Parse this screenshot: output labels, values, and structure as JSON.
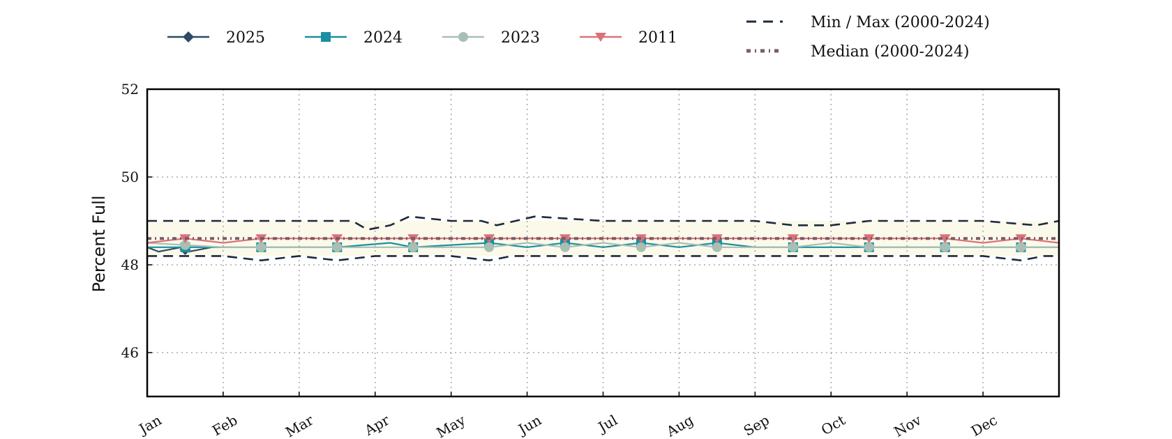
{
  "chart_data": {
    "type": "line",
    "ylabel": "Percent Full",
    "ylim": [
      45,
      52
    ],
    "yticks": [
      46,
      48,
      50,
      52
    ],
    "x_categories": [
      "Jan",
      "Feb",
      "Mar",
      "Apr",
      "May",
      "Jun",
      "Jul",
      "Aug",
      "Sep",
      "Oct",
      "Nov",
      "Dec"
    ],
    "grid": true,
    "legend_position": "top",
    "band": {
      "min_approx": 48.2,
      "max_approx": 49.0,
      "color": "#fbf9ea"
    },
    "series": [
      {
        "name": "2025",
        "color": "#2e4a66",
        "marker": "diamond",
        "x": [
          0,
          0.15,
          0.45,
          0.55,
          0.85
        ],
        "y": [
          48.4,
          48.3,
          48.4,
          48.3,
          48.4
        ]
      },
      {
        "name": "2024",
        "color": "#1a8fa3",
        "marker": "square",
        "x": [
          0,
          0.5,
          1.5,
          2.5,
          3.2,
          3.5,
          4.5,
          5.0,
          5.5,
          6.0,
          6.5,
          7.0,
          7.5,
          8.0,
          8.5,
          9.5,
          10.5,
          11.5,
          12
        ],
        "y": [
          48.4,
          48.4,
          48.4,
          48.4,
          48.5,
          48.4,
          48.5,
          48.4,
          48.5,
          48.4,
          48.5,
          48.4,
          48.5,
          48.4,
          48.4,
          48.4,
          48.4,
          48.4,
          48.4
        ]
      },
      {
        "name": "2023",
        "color": "#a9bfb4",
        "marker": "circle",
        "x": [
          0,
          1,
          2,
          3,
          4,
          4.5,
          5,
          5.5,
          6,
          6.5,
          7,
          7.5,
          8,
          8.5,
          9,
          9.5,
          10,
          11,
          12
        ],
        "y": [
          48.5,
          48.4,
          48.4,
          48.4,
          48.4,
          48.4,
          48.5,
          48.4,
          48.5,
          48.4,
          48.5,
          48.4,
          48.4,
          48.4,
          48.5,
          48.4,
          48.4,
          48.4,
          48.4
        ]
      },
      {
        "name": "2011",
        "color": "#d9727a",
        "marker": "triangle-down",
        "x": [
          0,
          0.5,
          1,
          1.5,
          2,
          2.5,
          3,
          3.5,
          4,
          4.5,
          5,
          5.5,
          6,
          6.5,
          7,
          7.5,
          8,
          8.5,
          9,
          9.5,
          10,
          10.5,
          11,
          11.5,
          12
        ],
        "y": [
          48.5,
          48.6,
          48.5,
          48.6,
          48.6,
          48.6,
          48.6,
          48.6,
          48.6,
          48.6,
          48.6,
          48.6,
          48.6,
          48.6,
          48.6,
          48.6,
          48.6,
          48.6,
          48.6,
          48.6,
          48.6,
          48.6,
          48.5,
          48.6,
          48.5
        ]
      },
      {
        "name": "Min / Max (2000-2024)",
        "color": "#1b2a3e",
        "style": "dashed",
        "kind": "max",
        "x": [
          0,
          0.5,
          1,
          2,
          2.7,
          2.9,
          3.2,
          3.45,
          4,
          4.4,
          4.6,
          5.1,
          6,
          7,
          8,
          8.5,
          9,
          9.5,
          10,
          11,
          11.7,
          12
        ],
        "y": [
          49.0,
          49.0,
          49.0,
          49.0,
          49.0,
          48.8,
          48.9,
          49.1,
          49.0,
          49.0,
          48.9,
          49.1,
          49.0,
          49.0,
          49.0,
          48.9,
          48.9,
          49.0,
          49.0,
          49.0,
          48.9,
          49.0
        ]
      },
      {
        "name": "Min / Max (2000-2024)",
        "color": "#1b2a3e",
        "style": "dashed",
        "kind": "min",
        "x": [
          0,
          0.5,
          1,
          1.5,
          2,
          2.5,
          3,
          3.5,
          4,
          4.5,
          4.8,
          5.2,
          6,
          7,
          8,
          9,
          10,
          11,
          11.5,
          11.8,
          12
        ],
        "y": [
          48.2,
          48.2,
          48.2,
          48.1,
          48.2,
          48.1,
          48.2,
          48.2,
          48.2,
          48.1,
          48.2,
          48.2,
          48.2,
          48.2,
          48.2,
          48.2,
          48.2,
          48.2,
          48.1,
          48.2,
          48.2
        ]
      },
      {
        "name": "Median (2000-2024)",
        "color": "#7a5a66",
        "style": "dashdot",
        "x": [
          0,
          1,
          2,
          3,
          4,
          5,
          6,
          7,
          8,
          9,
          10,
          11,
          12
        ],
        "y": [
          48.6,
          48.6,
          48.6,
          48.6,
          48.6,
          48.6,
          48.6,
          48.6,
          48.6,
          48.6,
          48.6,
          48.6,
          48.6
        ]
      }
    ],
    "legend": {
      "row1": [
        {
          "label": "2025",
          "color": "#2e4a66",
          "marker": "diamond"
        },
        {
          "label": "2024",
          "color": "#1a8fa3",
          "marker": "square"
        },
        {
          "label": "2023",
          "color": "#a9bfb4",
          "marker": "circle"
        },
        {
          "label": "2011",
          "color": "#d9727a",
          "marker": "triangle-down"
        }
      ],
      "row2": [
        {
          "label": "Min / Max (2000-2024)",
          "color": "#1b2a3e",
          "style": "dashed"
        },
        {
          "label": "Median (2000-2024)",
          "color": "#7a5a66",
          "style": "dashdot"
        }
      ]
    }
  }
}
